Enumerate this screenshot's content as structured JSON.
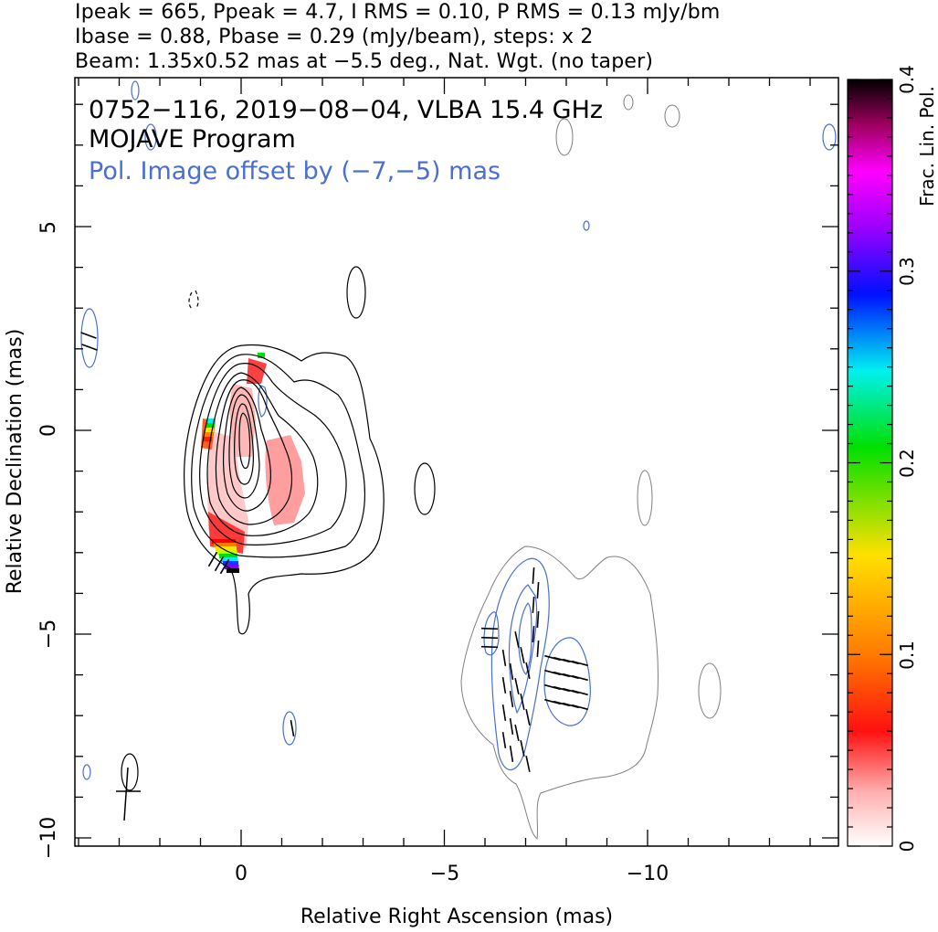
{
  "header": {
    "line1": "Ipeak = 665, Ppeak = 4.7, I RMS = 0.10, P RMS = 0.13 mJy/bm",
    "line2": "Ibase = 0.88, Pbase = 0.29 (mJy/beam), steps: x 2",
    "line3": "Beam: 1.35x0.52 mas at −5.5 deg., Nat. Wgt. (no taper)"
  },
  "plot_text": {
    "source_line": "0752−116, 2019−08−04, VLBA 15.4 GHz",
    "program_line": "MOJAVE Program",
    "offset_line": "Pol. Image offset by (−7,−5) mas"
  },
  "colors": {
    "total_intensity_contour": "#000000",
    "offset_total_contour": "#808080",
    "pol_contour": "#4a6fd0",
    "offset_text": "#4a6fd0",
    "evpa_tick": "#000000"
  },
  "chart_data": {
    "type": "heatmap",
    "xlabel": "Relative Right Ascension (mas)",
    "ylabel": "Relative Declination (mas)",
    "xlim": [
      4.0,
      -14.7
    ],
    "ylim": [
      -10.3,
      8.7
    ],
    "x_ticks": [
      0,
      -5,
      -10
    ],
    "x_tick_labels": [
      "0",
      "−5",
      "−10"
    ],
    "y_ticks": [
      5,
      0,
      -5,
      -10
    ],
    "y_tick_labels": [
      "5",
      "0",
      "−5",
      "−10"
    ],
    "colorbar": {
      "label": "Frac. Lin. Pol.",
      "range": [
        0,
        0.4
      ],
      "ticks": [
        0,
        0.1,
        0.2,
        0.3,
        0.4
      ],
      "tick_labels": [
        "0",
        "0.1",
        "0.2",
        "0.3",
        "0.4"
      ],
      "colormap": [
        "#ffffff",
        "#ff8c8c",
        "#ff0000",
        "#ff8000",
        "#ffff00",
        "#00ff00",
        "#00ffff",
        "#0000ff",
        "#8000ff",
        "#ff00ff",
        "#000000"
      ]
    },
    "core": {
      "x": 0.0,
      "y": 0.0,
      "peak_mJy_per_beam": 665
    },
    "ipeak_mJy_per_beam": 665,
    "ppeak_mJy_per_beam": 4.7,
    "i_rms": 0.1,
    "p_rms": 0.13,
    "ibase": 0.88,
    "pbase": 0.29,
    "contour_step": 2,
    "beam": {
      "major_mas": 1.35,
      "minor_mas": 0.52,
      "pa_deg": -5.5
    },
    "pol_offset_mas": [
      -7,
      -5
    ],
    "grid": false
  }
}
